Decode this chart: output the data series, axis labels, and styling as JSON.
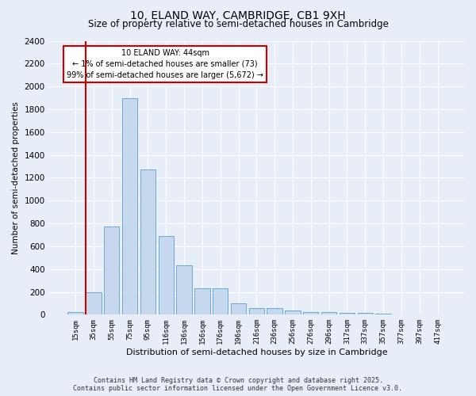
{
  "title": "10, ELAND WAY, CAMBRIDGE, CB1 9XH",
  "subtitle": "Size of property relative to semi-detached houses in Cambridge",
  "xlabel": "Distribution of semi-detached houses by size in Cambridge",
  "ylabel": "Number of semi-detached properties",
  "bar_labels": [
    "15sqm",
    "35sqm",
    "55sqm",
    "75sqm",
    "95sqm",
    "116sqm",
    "136sqm",
    "156sqm",
    "176sqm",
    "196sqm",
    "216sqm",
    "236sqm",
    "256sqm",
    "276sqm",
    "296sqm",
    "317sqm",
    "337sqm",
    "357sqm",
    "377sqm",
    "397sqm",
    "417sqm"
  ],
  "bar_values": [
    25,
    200,
    770,
    1900,
    1275,
    690,
    430,
    230,
    230,
    100,
    60,
    55,
    35,
    25,
    20,
    15,
    15,
    10,
    5,
    3,
    2
  ],
  "bar_color": "#c5d8ee",
  "bar_edge_color": "#6aaad4",
  "vline_color": "#cc0000",
  "ylim": [
    0,
    2400
  ],
  "yticks": [
    0,
    200,
    400,
    600,
    800,
    1000,
    1200,
    1400,
    1600,
    1800,
    2000,
    2200,
    2400
  ],
  "annotation_title": "10 ELAND WAY: 44sqm",
  "annotation_line1": "← 1% of semi-detached houses are smaller (73)",
  "annotation_line2": "99% of semi-detached houses are larger (5,672) →",
  "annotation_box_color": "#ffffff",
  "annotation_box_edge": "#cc0000",
  "footer1": "Contains HM Land Registry data © Crown copyright and database right 2025.",
  "footer2": "Contains public sector information licensed under the Open Government Licence v3.0.",
  "bg_color": "#e8eef8",
  "plot_bg_color": "#e8eef8",
  "grid_color": "#ffffff",
  "title_fontsize": 10,
  "subtitle_fontsize": 8.5,
  "ylabel_fontsize": 7.5,
  "xlabel_fontsize": 8,
  "ytick_fontsize": 7.5,
  "xtick_fontsize": 6.5,
  "footer_fontsize": 6,
  "annot_fontsize": 7
}
